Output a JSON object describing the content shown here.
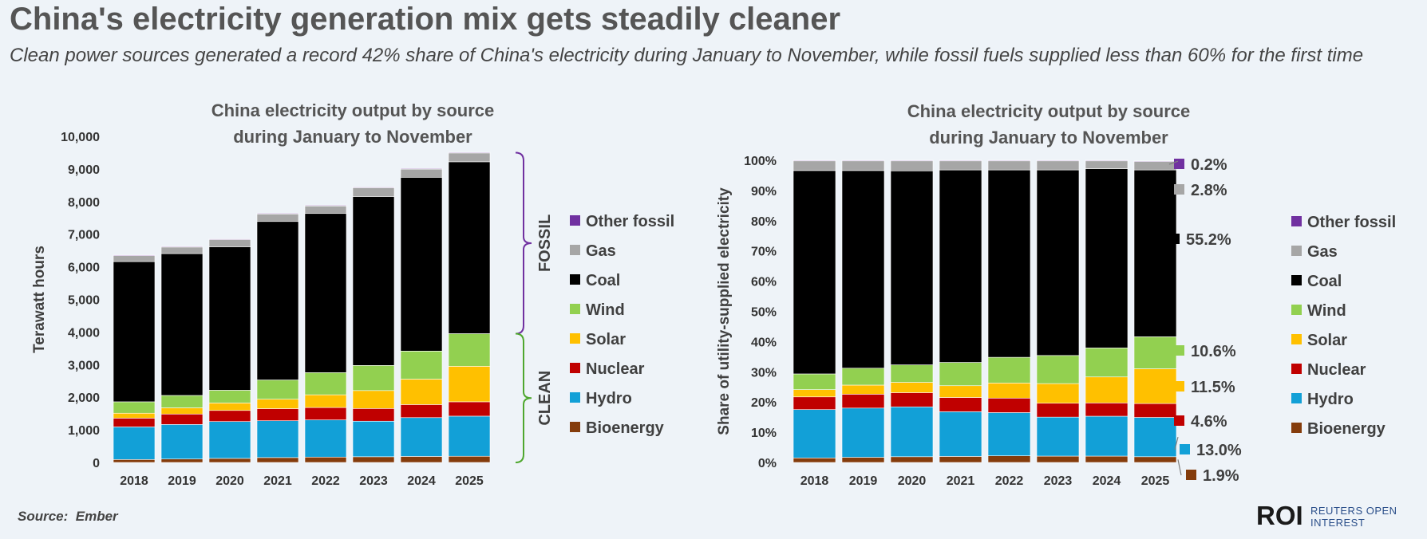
{
  "header": {
    "title": "China's electricity generation mix gets steadily cleaner",
    "subtitle": "Clean power sources generated a record 42% share of China's electricity during January to November, while fossil fuels supplied less than 60% for the first time"
  },
  "footer": {
    "source": "Source:  Ember",
    "logo_mark": "ROI",
    "logo_line1": "REUTERS OPEN",
    "logo_line2": "INTEREST"
  },
  "colors": {
    "Bioenergy": "#843c0c",
    "Hydro": "#12a0d7",
    "Nuclear": "#c00000",
    "Solar": "#ffc000",
    "Wind": "#92d050",
    "Coal": "#000000",
    "Gas": "#a6a6a6",
    "Other fossil": "#7030a0",
    "fossil_bracket": "#7030a0",
    "clean_bracket": "#4ea72e"
  },
  "chart_data": [
    {
      "type": "bar",
      "stacked": true,
      "title_line1": "China electricity output by source",
      "title_line2": "during January to November",
      "ylabel": "Terawatt hours",
      "ylim": [
        0,
        10000
      ],
      "yticks": [
        "0",
        "1,000",
        "2,000",
        "3,000",
        "4,000",
        "5,000",
        "6,000",
        "7,000",
        "8,000",
        "9,000",
        "10,000"
      ],
      "categories": [
        "2018",
        "2019",
        "2020",
        "2021",
        "2022",
        "2023",
        "2024",
        "2025"
      ],
      "series": [
        {
          "name": "Bioenergy",
          "values": [
            90,
            105,
            125,
            150,
            165,
            175,
            185,
            190
          ]
        },
        {
          "name": "Hydro",
          "values": [
            1000,
            1060,
            1130,
            1130,
            1140,
            1090,
            1190,
            1230
          ]
        },
        {
          "name": "Nuclear",
          "values": [
            270,
            320,
            340,
            370,
            380,
            390,
            400,
            440
          ]
        },
        {
          "name": "Solar",
          "values": [
            150,
            190,
            230,
            290,
            390,
            550,
            780,
            1090
          ]
        },
        {
          "name": "Wind",
          "values": [
            350,
            380,
            390,
            590,
            680,
            770,
            860,
            1000
          ]
        },
        {
          "name": "Coal",
          "values": [
            4300,
            4350,
            4400,
            4860,
            4880,
            5180,
            5330,
            5270
          ]
        },
        {
          "name": "Gas",
          "values": [
            180,
            200,
            220,
            230,
            230,
            270,
            250,
            270
          ]
        },
        {
          "name": "Other fossil",
          "values": [
            20,
            20,
            20,
            20,
            20,
            20,
            20,
            20
          ]
        }
      ],
      "legend": [
        "Other fossil",
        "Gas",
        "Coal",
        "Wind",
        "Solar",
        "Nuclear",
        "Hydro",
        "Bioenergy"
      ],
      "brackets": [
        {
          "label": "FOSSIL",
          "from": 3950,
          "to": 9500
        },
        {
          "label": "CLEAN",
          "from": 0,
          "to": 3950
        }
      ]
    },
    {
      "type": "bar",
      "stacked": true,
      "percent": true,
      "title_line1": "China electricity output by source",
      "title_line2": "during January to November",
      "ylabel": "Share of utility-supplied electricity",
      "ylim": [
        0,
        100
      ],
      "yticks": [
        "0%",
        "10%",
        "20%",
        "30%",
        "40%",
        "50%",
        "60%",
        "70%",
        "80%",
        "90%",
        "100%"
      ],
      "categories": [
        "2018",
        "2019",
        "2020",
        "2021",
        "2022",
        "2023",
        "2024",
        "2025"
      ],
      "series": [
        {
          "name": "Bioenergy",
          "values": [
            1.5,
            1.7,
            1.9,
            2.0,
            2.2,
            2.1,
            2.1,
            1.9
          ]
        },
        {
          "name": "Hydro",
          "values": [
            16.0,
            16.3,
            16.5,
            14.8,
            14.3,
            12.9,
            13.2,
            13.0
          ]
        },
        {
          "name": "Nuclear",
          "values": [
            4.2,
            4.6,
            4.7,
            4.7,
            4.8,
            4.6,
            4.4,
            4.6
          ]
        },
        {
          "name": "Solar",
          "values": [
            2.4,
            3.0,
            3.4,
            3.9,
            5.0,
            6.5,
            8.6,
            11.5
          ]
        },
        {
          "name": "Wind",
          "values": [
            5.2,
            5.6,
            5.8,
            7.7,
            8.5,
            9.3,
            9.6,
            10.6
          ]
        },
        {
          "name": "Coal",
          "values": [
            67.3,
            65.4,
            64.2,
            63.7,
            62.0,
            61.4,
            59.3,
            55.2
          ]
        },
        {
          "name": "Gas",
          "values": [
            3.2,
            3.2,
            3.3,
            3.0,
            3.0,
            3.0,
            2.6,
            2.8
          ]
        },
        {
          "name": "Other fossil",
          "values": [
            0.2,
            0.2,
            0.2,
            0.2,
            0.2,
            0.2,
            0.2,
            0.2
          ]
        }
      ],
      "legend": [
        "Other fossil",
        "Gas",
        "Coal",
        "Wind",
        "Solar",
        "Nuclear",
        "Hydro",
        "Bioenergy"
      ],
      "value_labels": [
        {
          "series": "Other fossil",
          "label": "0.2%"
        },
        {
          "series": "Gas",
          "label": "2.8%"
        },
        {
          "series": "Coal",
          "label": "55.2%"
        },
        {
          "series": "Wind",
          "label": "10.6%"
        },
        {
          "series": "Solar",
          "label": "11.5%"
        },
        {
          "series": "Nuclear",
          "label": "4.6%"
        },
        {
          "series": "Hydro",
          "label": "13.0%"
        },
        {
          "series": "Bioenergy",
          "label": "1.9%"
        }
      ]
    }
  ]
}
